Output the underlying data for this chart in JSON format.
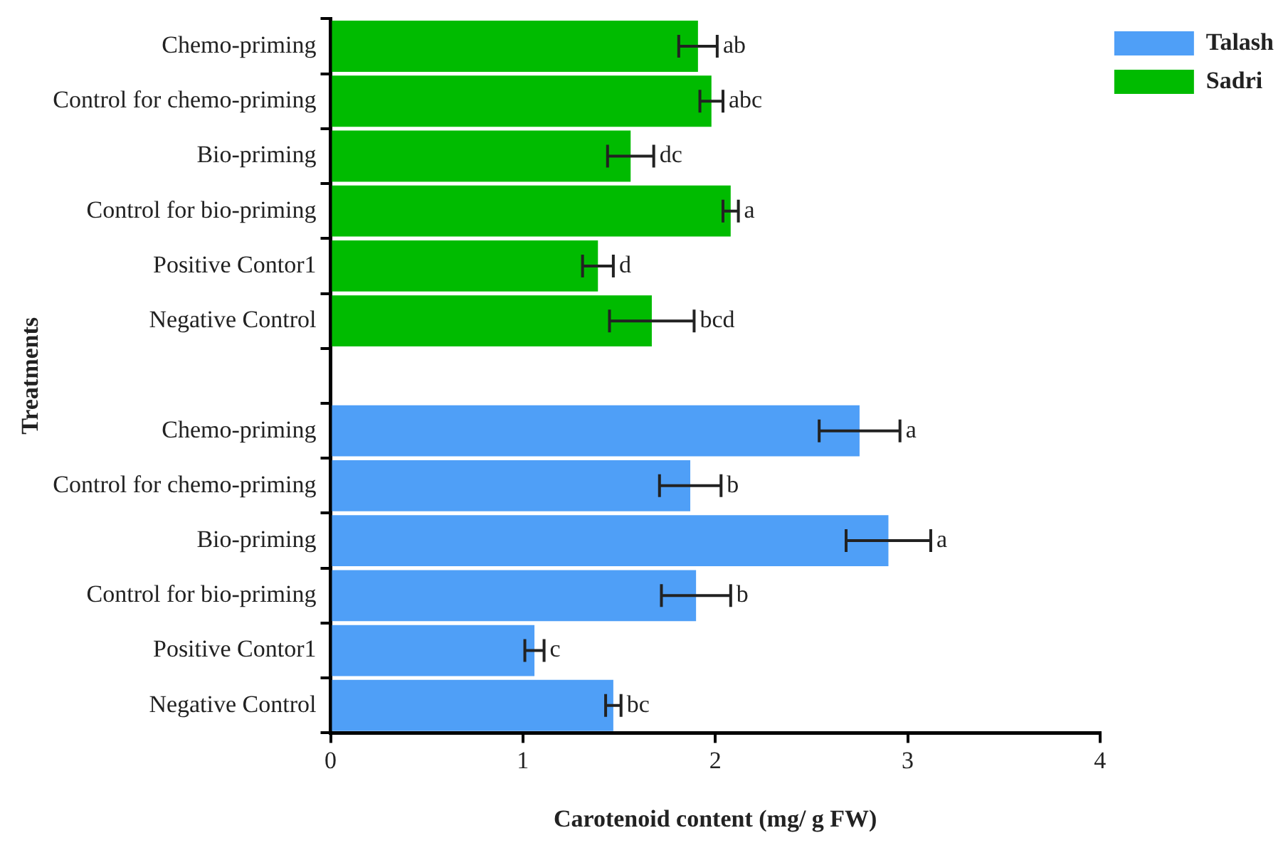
{
  "chart_data": {
    "type": "bar",
    "orientation": "horizontal",
    "xlabel": "Carotenoid content (mg/ g FW)",
    "ylabel": "Treatments",
    "categories": [
      "Chemo-priming",
      "Control for chemo-priming",
      "Bio-priming",
      "Control for bio-priming",
      "Positive Contor1",
      "Negative Control",
      null,
      "Chemo-priming",
      "Control for chemo-priming",
      "Bio-priming",
      "Control for bio-priming",
      "Positive Contor1",
      "Negative Control"
    ],
    "series": [
      {
        "name": "Talash",
        "color": "#4f9ff7",
        "values": [
          null,
          null,
          null,
          null,
          null,
          null,
          null,
          2.75,
          1.87,
          2.9,
          1.9,
          1.06,
          1.47
        ],
        "errors": [
          null,
          null,
          null,
          null,
          null,
          null,
          null,
          0.21,
          0.16,
          0.22,
          0.18,
          0.05,
          0.04
        ],
        "value_labels": [
          null,
          null,
          null,
          null,
          null,
          null,
          null,
          "a",
          "b",
          "a",
          "b",
          "c",
          "bc"
        ]
      },
      {
        "name": "Sadri",
        "color": "#00bb00",
        "values": [
          1.91,
          1.98,
          1.56,
          2.08,
          1.39,
          1.67,
          null,
          null,
          null,
          null,
          null,
          null,
          null
        ],
        "errors": [
          0.1,
          0.06,
          0.12,
          0.04,
          0.08,
          0.22,
          null,
          null,
          null,
          null,
          null,
          null,
          null
        ],
        "value_labels": [
          "ab",
          "abc",
          "dc",
          "a",
          "d",
          "bcd",
          null,
          null,
          null,
          null,
          null,
          null,
          null
        ]
      }
    ],
    "xlim": [
      0,
      4
    ],
    "xticks": [
      0,
      1,
      2,
      3,
      4
    ],
    "grid": false,
    "legend": "top right"
  }
}
